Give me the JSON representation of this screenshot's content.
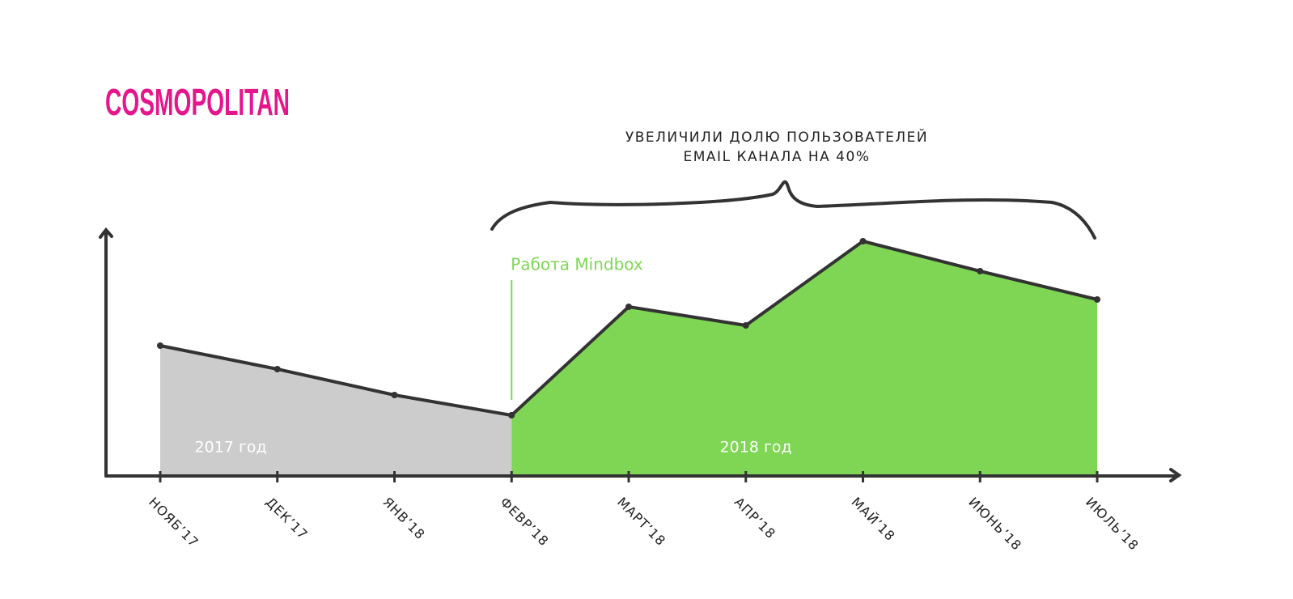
{
  "chart_data": {
    "type": "area",
    "title": "COSMOPOLITAN",
    "annotation": [
      "УВЕЛИЧИЛИ ДОЛЮ ПОЛЬЗОВАТЕЛЕЙ",
      "EMAIL КАНАЛА НА 40%"
    ],
    "marker_label": "Работа Mindbox",
    "categories": [
      "НОЯБ’17",
      "ДЕК’17",
      "ЯНВ’18",
      "ФЕВР’18",
      "МАРТ’18",
      "АПР’18",
      "МАЙ’18",
      "ИЮНЬ’18",
      "ИЮЛЬ’18"
    ],
    "series": [
      {
        "name": "2017 год",
        "color": "#cccccc",
        "values": [
          161,
          132,
          100,
          75,
          null,
          null,
          null,
          null,
          null
        ]
      },
      {
        "name": "2018 год",
        "color": "#7ed654",
        "values": [
          null,
          null,
          null,
          75,
          209,
          186,
          290,
          253,
          218
        ]
      }
    ],
    "ylim": [
      0,
      300
    ]
  }
}
